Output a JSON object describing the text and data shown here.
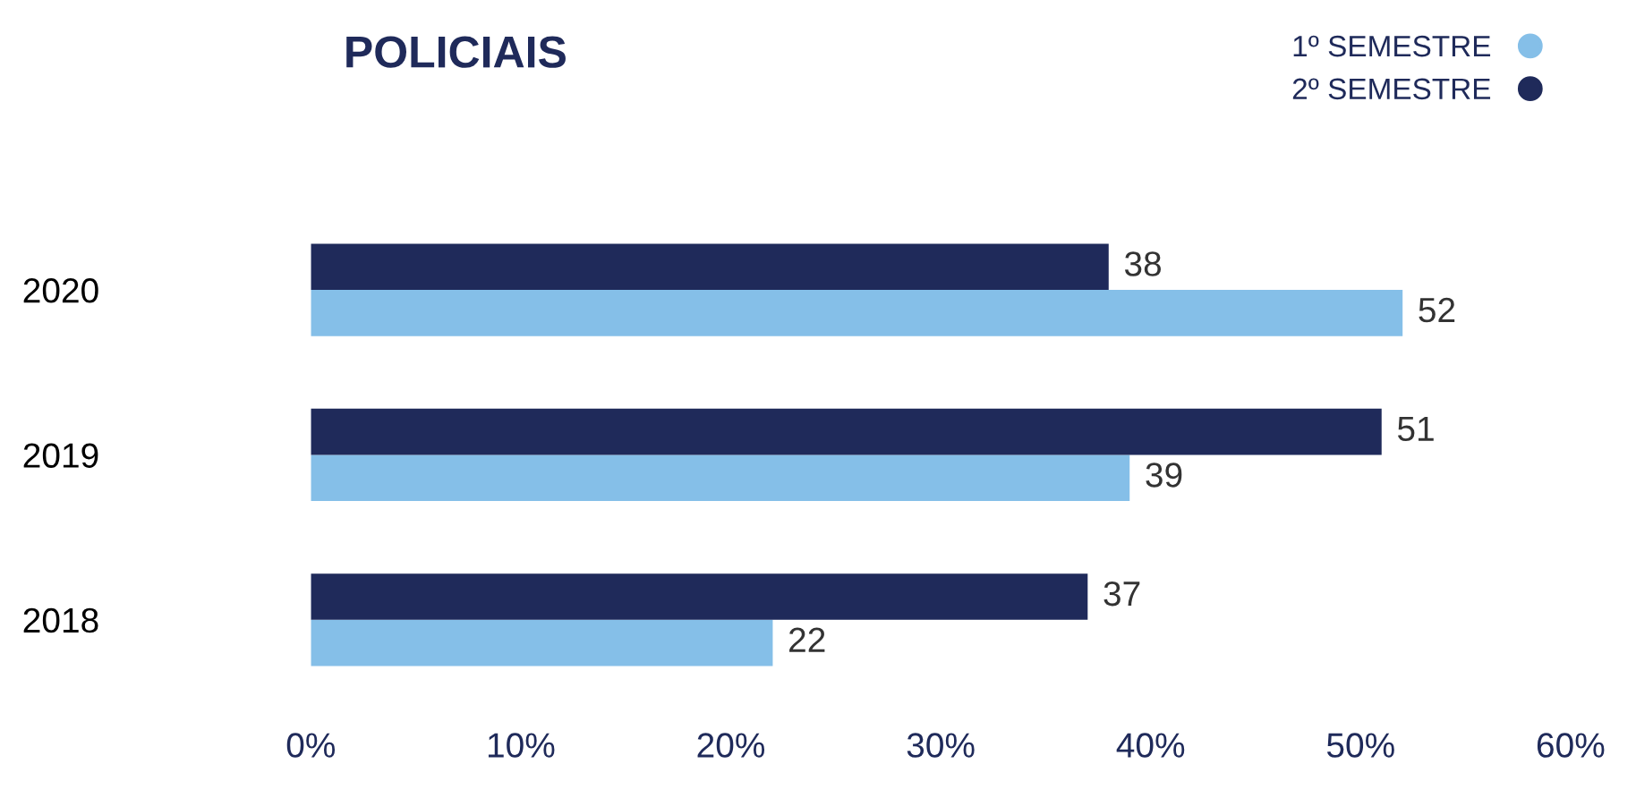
{
  "chart_data": {
    "type": "bar",
    "orientation": "horizontal",
    "title": "POLICIAIS",
    "categories": [
      "2020",
      "2019",
      "2018"
    ],
    "series": [
      {
        "name": "1º SEMESTRE",
        "color": "#85bfe8",
        "values": [
          52,
          39,
          22
        ]
      },
      {
        "name": "2º SEMESTRE",
        "color": "#1f2a5a",
        "values": [
          38,
          51,
          37
        ]
      }
    ],
    "xlim": [
      0,
      60
    ],
    "xticks": [
      {
        "value": 0,
        "label": "0%"
      },
      {
        "value": 10,
        "label": "10%"
      },
      {
        "value": 20,
        "label": "20%"
      },
      {
        "value": 30,
        "label": "30%"
      },
      {
        "value": 40,
        "label": "40%"
      },
      {
        "value": 50,
        "label": "50%"
      },
      {
        "value": 60,
        "label": "60%"
      }
    ],
    "data_labels": true,
    "legend": "top right",
    "grid": false
  }
}
